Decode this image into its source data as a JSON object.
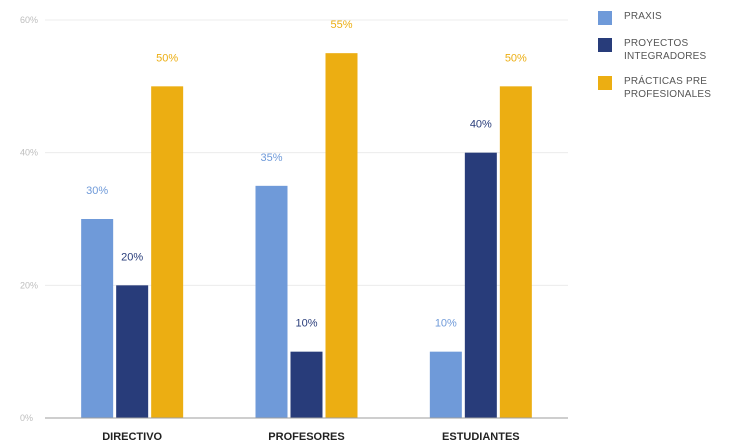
{
  "chart_data": {
    "type": "bar",
    "categories": [
      "DIRECTIVO",
      "PROFESORES",
      "ESTUDIANTES"
    ],
    "series": [
      {
        "name": "PRAXIS",
        "values": [
          30,
          35,
          10
        ],
        "color": "#6f9ad9",
        "labels": [
          "30%",
          "35%",
          "10%"
        ]
      },
      {
        "name": "PROYECTOS INTEGRADORES",
        "values": [
          20,
          10,
          40
        ],
        "color": "#283c7a",
        "labels": [
          "20%",
          "10%",
          "40%"
        ]
      },
      {
        "name": "PRÁCTICAS PRE PROFESIONALES",
        "values": [
          50,
          55,
          50
        ],
        "color": "#ecae12",
        "labels": [
          "50%",
          "55%",
          "50%"
        ]
      }
    ],
    "yticks": [
      "0%",
      "20%",
      "40%",
      "60%"
    ],
    "ylim": [
      0,
      60
    ],
    "grid": true,
    "legend_position": "right"
  }
}
